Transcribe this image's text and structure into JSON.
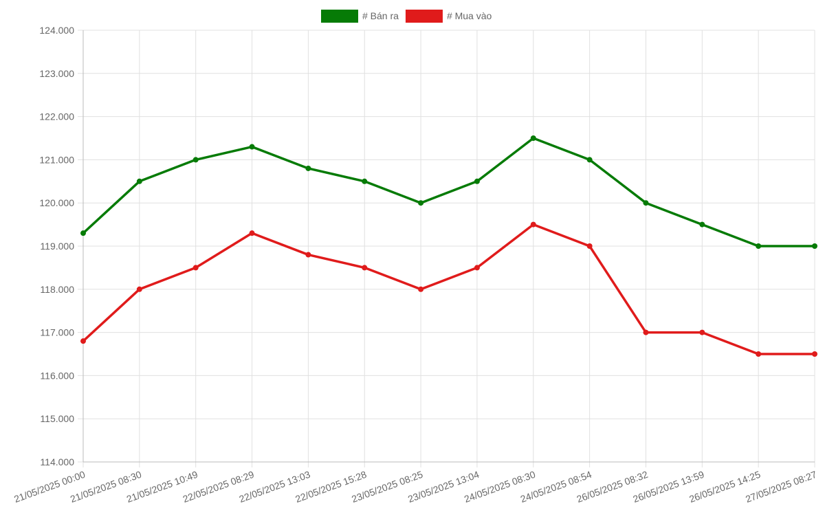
{
  "chart_data": {
    "type": "line",
    "categories": [
      "21/05/2025 00:00",
      "21/05/2025 08:30",
      "21/05/2025 10:49",
      "22/05/2025 08:29",
      "22/05/2025 13:03",
      "22/05/2025 15:28",
      "23/05/2025 08:25",
      "23/05/2025 13:04",
      "24/05/2025 08:30",
      "24/05/2025 08:54",
      "26/05/2025 08:32",
      "26/05/2025 13:59",
      "26/05/2025 14:25",
      "27/05/2025 08:27"
    ],
    "series": [
      {
        "name": "# Bán ra",
        "color": "#067b06",
        "values": [
          119300,
          120500,
          121000,
          121300,
          120800,
          120500,
          120000,
          120500,
          121500,
          121000,
          120000,
          119500,
          119000,
          119000
        ]
      },
      {
        "name": "# Mua vào",
        "color": "#e01b1b",
        "values": [
          116800,
          118000,
          118500,
          119300,
          118800,
          118500,
          118000,
          118500,
          119500,
          119000,
          117000,
          117000,
          116500,
          116500
        ]
      }
    ],
    "ylim": [
      114000,
      124000
    ],
    "yticks": [
      {
        "value": 114000,
        "label": "114.000"
      },
      {
        "value": 115000,
        "label": "115.000"
      },
      {
        "value": 116000,
        "label": "116.000"
      },
      {
        "value": 117000,
        "label": "117.000"
      },
      {
        "value": 118000,
        "label": "118.000"
      },
      {
        "value": 119000,
        "label": "119.000"
      },
      {
        "value": 120000,
        "label": "120.000"
      },
      {
        "value": 121000,
        "label": "121.000"
      },
      {
        "value": 122000,
        "label": "122.000"
      },
      {
        "value": 123000,
        "label": "123.000"
      },
      {
        "value": 124000,
        "label": "124.000"
      }
    ],
    "grid": true,
    "legend": "top"
  }
}
